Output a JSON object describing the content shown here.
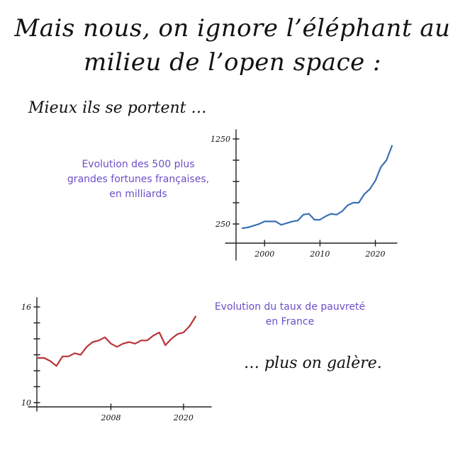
{
  "heading": {
    "line1": "Mais nous, on ignore l’éléphant au",
    "line2": "milieu de l’open space :"
  },
  "captions": {
    "top": "Mieux ils se portent …",
    "bottom": "… plus on galère."
  },
  "colors": {
    "wealth_line": "#3a6fb5",
    "poverty_line": "#b8333a",
    "chart_title": "#6a4fc8"
  },
  "chart_data": [
    {
      "type": "line",
      "title_lines": [
        "Evolution des 500 plus",
        "grandes fortunes françaises,",
        "en milliards"
      ],
      "xlabel": "",
      "ylabel": "",
      "xlim": [
        1995,
        2024
      ],
      "ylim": [
        150,
        1450
      ],
      "x_ticks": [
        2000,
        2010,
        2020
      ],
      "x_tick_labels": [
        "2000",
        "2010",
        "2020"
      ],
      "y_ticks": [
        250,
        1250
      ],
      "y_tick_labels": [
        "250",
        "1250"
      ],
      "grid": false,
      "series": [
        {
          "x": [
            1996,
            1997,
            1998,
            1999,
            2000,
            2001,
            2002,
            2003,
            2004,
            2005,
            2006,
            2007,
            2008,
            2009,
            2010,
            2011,
            2012,
            2013,
            2014,
            2015,
            2016,
            2017,
            2018,
            2019,
            2020,
            2021,
            2022,
            2023
          ],
          "values": [
            200,
            210,
            230,
            250,
            280,
            280,
            280,
            240,
            260,
            280,
            290,
            360,
            370,
            300,
            300,
            340,
            370,
            360,
            400,
            470,
            500,
            500,
            600,
            660,
            760,
            920,
            1000,
            1170
          ]
        }
      ]
    },
    {
      "type": "line",
      "title_lines": [
        "Evolution du taux de pauvreté",
        "en France"
      ],
      "xlabel": "",
      "ylabel": "",
      "xlim": [
        1996,
        2024
      ],
      "ylim": [
        10,
        16
      ],
      "x_ticks": [
        2008,
        2020
      ],
      "x_tick_labels": [
        "2008",
        "2020"
      ],
      "y_ticks": [
        10,
        16
      ],
      "y_tick_labels": [
        "10",
        "16"
      ],
      "grid": false,
      "series": [
        {
          "x": [
            1996,
            1997,
            1998,
            1999,
            2000,
            2001,
            2002,
            2003,
            2004,
            2005,
            2006,
            2007,
            2008,
            2009,
            2010,
            2011,
            2012,
            2013,
            2014,
            2015,
            2016,
            2017,
            2018,
            2019,
            2020,
            2021,
            2022
          ],
          "values": [
            12.8,
            12.8,
            12.6,
            12.3,
            12.9,
            12.9,
            13.1,
            13.0,
            13.5,
            13.8,
            13.9,
            14.1,
            13.7,
            13.5,
            13.7,
            13.8,
            13.7,
            13.9,
            13.9,
            14.2,
            14.4,
            13.6,
            14.0,
            14.3,
            14.4,
            14.8,
            15.4
          ]
        }
      ]
    }
  ]
}
